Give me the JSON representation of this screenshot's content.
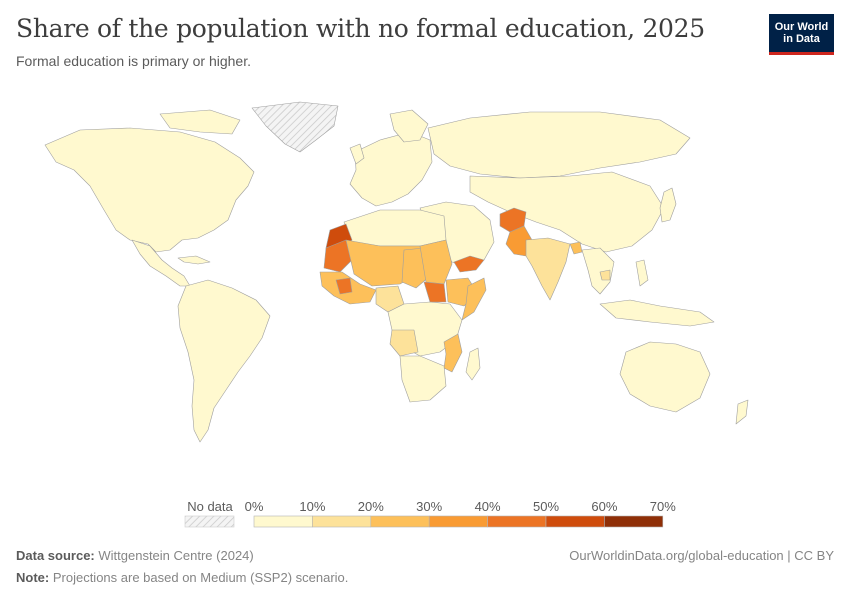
{
  "header": {
    "title": "Share of the population with no formal education, 2025",
    "subtitle": "Formal education is primary or higher.",
    "logo_line1": "Our World",
    "logo_line2": "in Data"
  },
  "legend": {
    "no_data_label": "No data",
    "tick_labels": [
      "0%",
      "10%",
      "20%",
      "30%",
      "40%",
      "50%",
      "60%",
      "70%"
    ],
    "bin_colors": [
      "#fff9cf",
      "#fde29a",
      "#fdc05a",
      "#f99b33",
      "#ec7425",
      "#cf4c0c",
      "#8f2f07"
    ],
    "no_data_color": "#e0e0e0"
  },
  "map": {
    "country_outline_color": "#999999",
    "ocean_color": "#ffffff"
  },
  "footer": {
    "source_label": "Data source:",
    "source_value": "Wittgenstein Centre (2024)",
    "note_label": "Note:",
    "note_value": "Projections are based on Medium (SSP2) scenario.",
    "url": "OurWorldinData.org/global-education | CC BY"
  }
}
